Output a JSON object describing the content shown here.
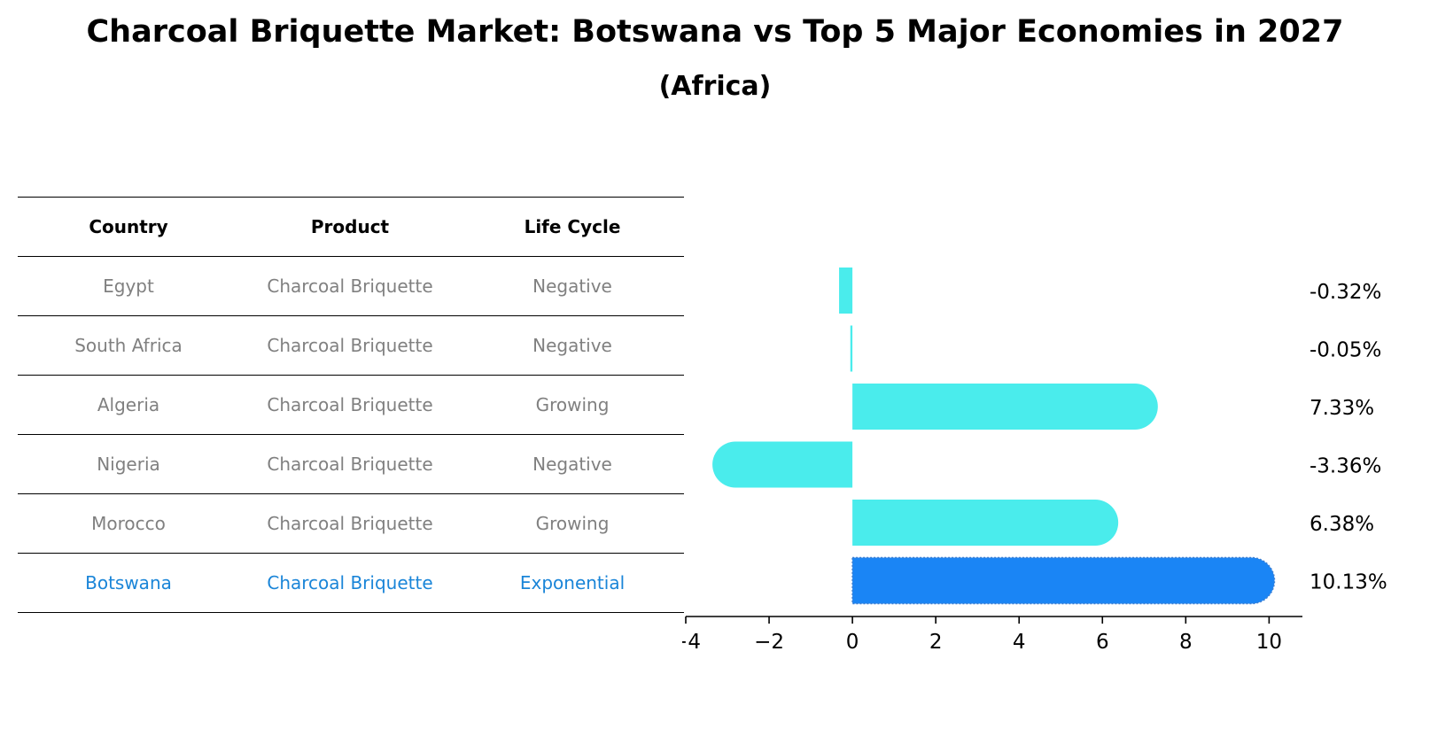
{
  "title": "Charcoal Briquette Market: Botswana vs Top 5 Major Economies in 2027",
  "subtitle": "(Africa)",
  "table": {
    "headers": [
      "Country",
      "Product",
      "Life Cycle"
    ],
    "rows": [
      [
        "Egypt",
        "Charcoal Briquette",
        "Negative"
      ],
      [
        "South Africa",
        "Charcoal Briquette",
        "Negative"
      ],
      [
        "Algeria",
        "Charcoal Briquette",
        "Growing"
      ],
      [
        "Nigeria",
        "Charcoal Briquette",
        "Negative"
      ],
      [
        "Morocco",
        "Charcoal Briquette",
        "Growing"
      ],
      [
        "Botswana",
        "Charcoal Briquette",
        "Exponential"
      ]
    ],
    "highlight_row": 5
  },
  "colors": {
    "bar": "#4aecec",
    "highlight_bar": "#1a85f5",
    "highlight_text": "#1a85d8",
    "table_text": "#808080"
  },
  "chart_data": {
    "type": "bar",
    "orientation": "horizontal",
    "categories": [
      "Egypt",
      "South Africa",
      "Algeria",
      "Nigeria",
      "Morocco",
      "Botswana"
    ],
    "values": [
      -0.32,
      -0.05,
      7.33,
      -3.36,
      6.38,
      10.13
    ],
    "value_labels": [
      "-0.32%",
      "-0.05%",
      "7.33%",
      "-3.36%",
      "6.38%",
      "10.13%"
    ],
    "xlim": [
      -4,
      10.8
    ],
    "xticks": [
      -4,
      -2,
      0,
      2,
      4,
      6,
      8,
      10
    ],
    "xtick_labels": [
      "−4",
      "−2",
      "0",
      "2",
      "4",
      "6",
      "8",
      "10"
    ],
    "highlight_index": 5,
    "grid": false
  }
}
